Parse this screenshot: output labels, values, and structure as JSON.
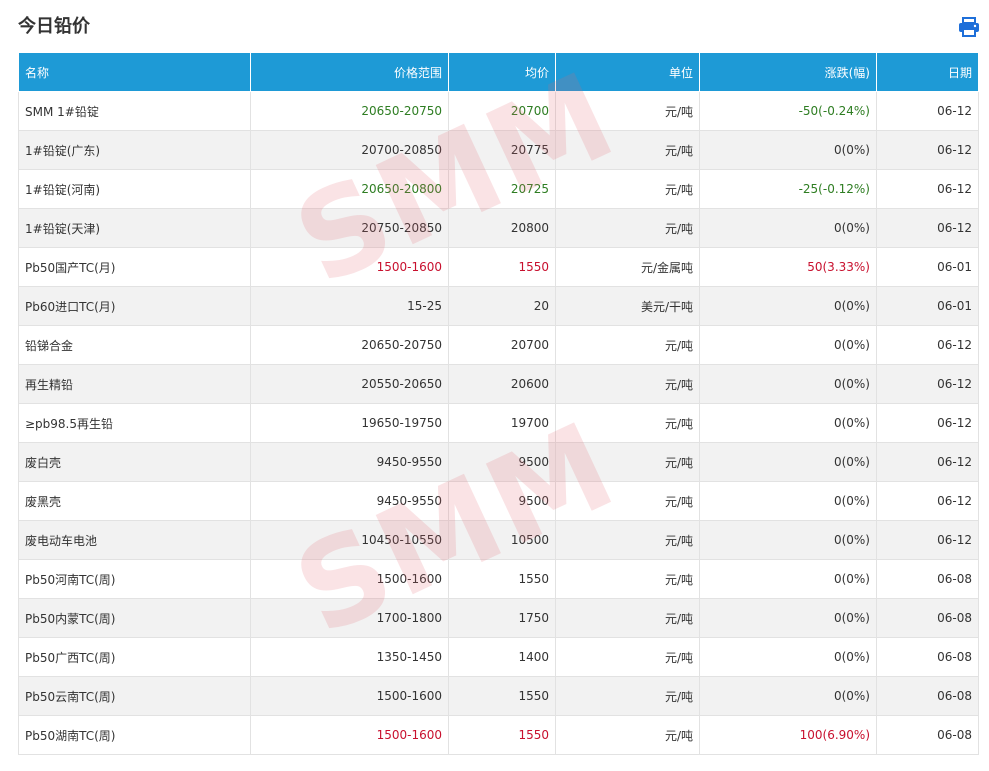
{
  "page": {
    "title": "今日铅价",
    "print_icon": "printer-icon",
    "watermark": "SMM"
  },
  "colors": {
    "header_bg": "#1e9ad6",
    "up": "#c8102e",
    "down": "#2e7d22",
    "row_alt": "#f2f2f2"
  },
  "table": {
    "headers": [
      "名称",
      "价格范围",
      "均价",
      "单位",
      "涨跌(幅)",
      "日期"
    ],
    "rows": [
      {
        "name": "SMM 1#铅锭",
        "range": "20650-20750",
        "avg": "20700",
        "unit": "元/吨",
        "change": "-50(-0.24%)",
        "date": "06-12",
        "trend": "down"
      },
      {
        "name": "1#铅锭(广东)",
        "range": "20700-20850",
        "avg": "20775",
        "unit": "元/吨",
        "change": "0(0%)",
        "date": "06-12",
        "trend": "flat"
      },
      {
        "name": "1#铅锭(河南)",
        "range": "20650-20800",
        "avg": "20725",
        "unit": "元/吨",
        "change": "-25(-0.12%)",
        "date": "06-12",
        "trend": "down"
      },
      {
        "name": "1#铅锭(天津)",
        "range": "20750-20850",
        "avg": "20800",
        "unit": "元/吨",
        "change": "0(0%)",
        "date": "06-12",
        "trend": "flat"
      },
      {
        "name": "Pb50国产TC(月)",
        "range": "1500-1600",
        "avg": "1550",
        "unit": "元/金属吨",
        "change": "50(3.33%)",
        "date": "06-01",
        "trend": "up"
      },
      {
        "name": "Pb60进口TC(月)",
        "range": "15-25",
        "avg": "20",
        "unit": "美元/干吨",
        "change": "0(0%)",
        "date": "06-01",
        "trend": "flat"
      },
      {
        "name": "铅锑合金",
        "range": "20650-20750",
        "avg": "20700",
        "unit": "元/吨",
        "change": "0(0%)",
        "date": "06-12",
        "trend": "flat"
      },
      {
        "name": "再生精铅",
        "range": "20550-20650",
        "avg": "20600",
        "unit": "元/吨",
        "change": "0(0%)",
        "date": "06-12",
        "trend": "flat"
      },
      {
        "name": "≥pb98.5再生铅",
        "range": "19650-19750",
        "avg": "19700",
        "unit": "元/吨",
        "change": "0(0%)",
        "date": "06-12",
        "trend": "flat"
      },
      {
        "name": "废白壳",
        "range": "9450-9550",
        "avg": "9500",
        "unit": "元/吨",
        "change": "0(0%)",
        "date": "06-12",
        "trend": "flat"
      },
      {
        "name": "废黑壳",
        "range": "9450-9550",
        "avg": "9500",
        "unit": "元/吨",
        "change": "0(0%)",
        "date": "06-12",
        "trend": "flat"
      },
      {
        "name": "废电动车电池",
        "range": "10450-10550",
        "avg": "10500",
        "unit": "元/吨",
        "change": "0(0%)",
        "date": "06-12",
        "trend": "flat"
      },
      {
        "name": "Pb50河南TC(周)",
        "range": "1500-1600",
        "avg": "1550",
        "unit": "元/吨",
        "change": "0(0%)",
        "date": "06-08",
        "trend": "flat"
      },
      {
        "name": "Pb50内蒙TC(周)",
        "range": "1700-1800",
        "avg": "1750",
        "unit": "元/吨",
        "change": "0(0%)",
        "date": "06-08",
        "trend": "flat"
      },
      {
        "name": "Pb50广西TC(周)",
        "range": "1350-1450",
        "avg": "1400",
        "unit": "元/吨",
        "change": "0(0%)",
        "date": "06-08",
        "trend": "flat"
      },
      {
        "name": "Pb50云南TC(周)",
        "range": "1500-1600",
        "avg": "1550",
        "unit": "元/吨",
        "change": "0(0%)",
        "date": "06-08",
        "trend": "flat"
      },
      {
        "name": "Pb50湖南TC(周)",
        "range": "1500-1600",
        "avg": "1550",
        "unit": "元/吨",
        "change": "100(6.90%)",
        "date": "06-08",
        "trend": "up"
      }
    ]
  }
}
